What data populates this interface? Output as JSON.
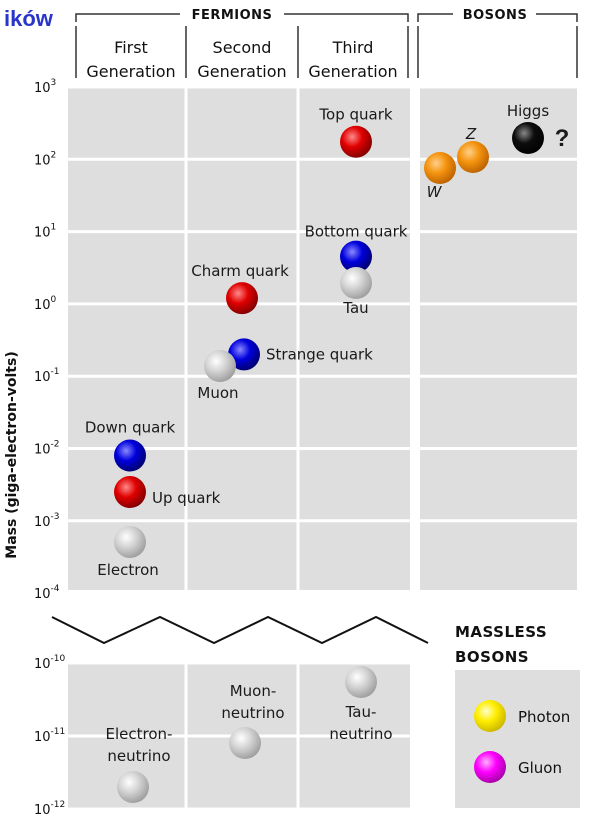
{
  "corner_text": "ików",
  "groups": {
    "fermions": "FERMIONS",
    "bosons": "BOSONS"
  },
  "generations": [
    [
      "First",
      "Generation"
    ],
    [
      "Second",
      "Generation"
    ],
    [
      "Third",
      "Generation"
    ]
  ],
  "massless": {
    "title": [
      "MASSLESS",
      "BOSONS"
    ],
    "items": [
      "Photon",
      "Gluon"
    ]
  },
  "colors": {
    "quark_up": "#e00000",
    "quark_down": "#0000dd",
    "lepton": "#d4d4d4",
    "boson": "#f5940f",
    "higgs": "#0d0d0d",
    "photon": "#ffee00",
    "gluon": "#ff00ff",
    "question": "#b00000"
  },
  "chart_data": {
    "type": "scatter",
    "ylabel": "Mass (giga-electron-volts)",
    "yscale": "log",
    "y_ticks_upper": [
      {
        "base": "10",
        "exp": "3"
      },
      {
        "base": "10",
        "exp": "2"
      },
      {
        "base": "10",
        "exp": "1"
      },
      {
        "base": "10",
        "exp": "0"
      },
      {
        "base": "10",
        "exp": "-1"
      },
      {
        "base": "10",
        "exp": "-2"
      },
      {
        "base": "10",
        "exp": "-3"
      },
      {
        "base": "10",
        "exp": "-4"
      }
    ],
    "y_ticks_lower": [
      {
        "base": "10",
        "exp": "-10"
      },
      {
        "base": "10",
        "exp": "-11"
      },
      {
        "base": "10",
        "exp": "-12"
      }
    ],
    "columns": [
      "First Generation",
      "Second Generation",
      "Third Generation",
      "Bosons"
    ],
    "points": [
      {
        "name": "Top quark",
        "column": 3,
        "mass": 175,
        "kind": "quark_up"
      },
      {
        "name": "Bottom quark",
        "column": 3,
        "mass": 4.5,
        "kind": "quark_down"
      },
      {
        "name": "Tau",
        "column": 3,
        "mass": 1.78,
        "kind": "lepton"
      },
      {
        "name": "Charm quark",
        "column": 2,
        "mass": 1.2,
        "kind": "quark_up"
      },
      {
        "name": "Strange quark",
        "column": 2,
        "mass": 0.2,
        "kind": "quark_down"
      },
      {
        "name": "Muon",
        "column": 2,
        "mass": 0.106,
        "kind": "lepton"
      },
      {
        "name": "Down quark",
        "column": 1,
        "mass": 0.008,
        "kind": "quark_down"
      },
      {
        "name": "Up quark",
        "column": 1,
        "mass": 0.0025,
        "kind": "quark_up"
      },
      {
        "name": "Electron",
        "column": 1,
        "mass": 0.00051,
        "kind": "lepton"
      },
      {
        "name": "W",
        "column": 4,
        "mass": 80.4,
        "kind": "boson"
      },
      {
        "name": "Z",
        "column": 4,
        "mass": 91.2,
        "kind": "boson"
      },
      {
        "name": "Higgs",
        "column": 4,
        "mass": 160,
        "kind": "higgs",
        "note": "?"
      },
      {
        "name": "Electron- neutrino",
        "column": 1,
        "mass": 1e-12,
        "kind": "lepton"
      },
      {
        "name": "Muon- neutrino",
        "column": 2,
        "mass": 1e-11,
        "kind": "lepton"
      },
      {
        "name": "Tau- neutrino",
        "column": 3,
        "mass": 3e-11,
        "kind": "lepton"
      }
    ]
  }
}
